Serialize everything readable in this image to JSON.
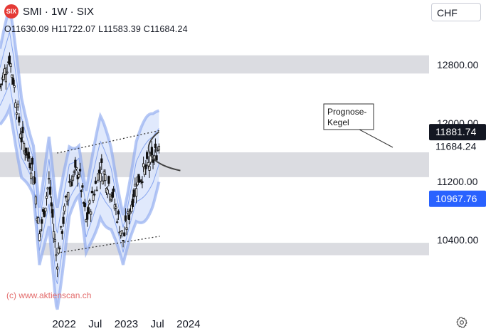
{
  "header": {
    "logo_text": "SIX",
    "symbol": "SMI · 1W · SIX",
    "ohlc": "O11630.09  H11722.07  L11583.39  C11684.24"
  },
  "currency_button": "CHF",
  "watermark": "(c) www.aktienscan.ch",
  "annotation": "Prognose-\nKegel",
  "colors": {
    "up": "#111111",
    "down": "#111111",
    "band_fill": "#dbe5fb",
    "band_line": "#86a4ee",
    "zone": "#d5d6dc",
    "price_label_bg": "#131722",
    "blue_label_bg": "#2962ff"
  },
  "chart_data": {
    "type": "candlestick",
    "y_axis": {
      "ticks": [
        12800,
        12000,
        11200,
        10400
      ],
      "tick_labels": [
        "12800.00",
        "12000.00",
        "11200.00",
        "10400.00"
      ]
    },
    "x_axis": {
      "tick_labels": [
        "2022",
        "Jul",
        "2023",
        "Jul",
        "2024"
      ]
    },
    "price_labels": [
      {
        "value": 11881.74,
        "label": "11881.74",
        "style": "dark"
      },
      {
        "value": 11684.24,
        "label": "11684.24",
        "style": "plain"
      },
      {
        "value": 10967.76,
        "label": "10967.76",
        "style": "blue"
      }
    ],
    "support_zones": [
      {
        "from": 12680,
        "to": 12930
      },
      {
        "from": 11260,
        "to": 11600
      },
      {
        "from": 10190,
        "to": 10360
      }
    ],
    "trendlines": [
      {
        "from": [
          "2022-10-01",
          10220
        ],
        "to": [
          "2024-05-25",
          10450
        ]
      },
      {
        "from": [
          "2022-10-01",
          11590
        ],
        "to": [
          "2024-05-25",
          11900
        ]
      }
    ],
    "key_points": [
      [
        "2021-11-01",
        12500
      ],
      [
        "2021-12-27",
        12900
      ],
      [
        "2022-01-17",
        12600
      ],
      [
        "2022-03-07",
        11800
      ],
      [
        "2022-05-16",
        11350
      ],
      [
        "2022-06-20",
        10450
      ],
      [
        "2022-08-15",
        11200
      ],
      [
        "2022-09-30",
        10100
      ],
      [
        "2022-12-12",
        11200
      ],
      [
        "2023-02-06",
        11350
      ],
      [
        "2023-03-20",
        10650
      ],
      [
        "2023-06-12",
        11400
      ],
      [
        "2023-08-14",
        11100
      ],
      [
        "2023-10-23",
        10400
      ],
      [
        "2024-01-08",
        11200
      ],
      [
        "2024-04-15",
        11500
      ],
      [
        "2024-05-20",
        11684
      ]
    ]
  }
}
